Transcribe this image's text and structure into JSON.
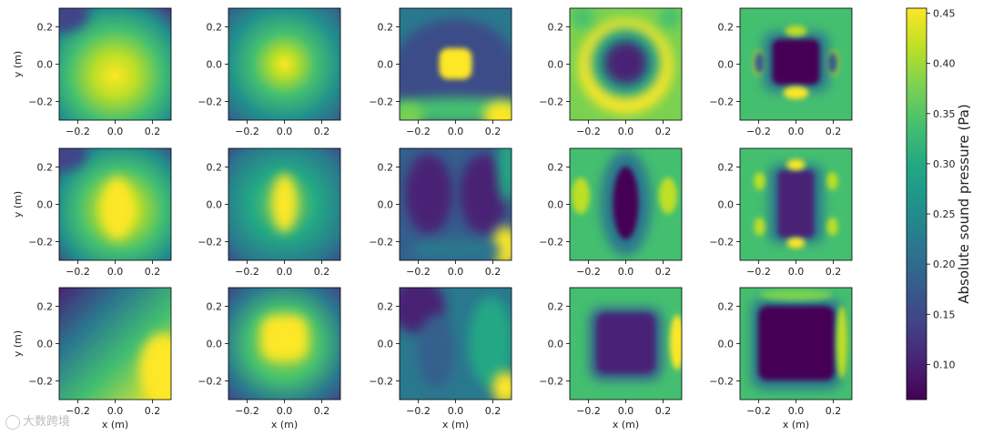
{
  "chart_data": {
    "type": "heatmap",
    "layout": {
      "rows": 3,
      "cols": 5
    },
    "x_range": [
      -0.3,
      0.3
    ],
    "y_range": [
      -0.3,
      0.3
    ],
    "x_ticks": [
      -0.2,
      0.0,
      0.2
    ],
    "y_ticks": [
      0.2,
      0.0,
      -0.2
    ],
    "x_tick_labels": [
      "−0.2",
      "0.0",
      "0.2"
    ],
    "y_tick_labels": [
      "0.2",
      "0.0",
      "−0.2"
    ],
    "xlabel": "x (m)",
    "ylabel": "y (m)",
    "colorbar": {
      "label": "Absolute sound pressure (Pa)",
      "range": [
        0.065,
        0.455
      ],
      "ticks": [
        0.45,
        0.4,
        0.35,
        0.3,
        0.25,
        0.2,
        0.15,
        0.1
      ],
      "tick_labels": [
        "0.45",
        "0.40",
        "0.35",
        "0.30",
        "0.25",
        "0.20",
        "0.15",
        "0.10"
      ],
      "colormap": "viridis"
    },
    "panels": [
      {
        "row": 0,
        "col": 0,
        "pattern": "broad-peak",
        "peak_at": [
          0.02,
          -0.05
        ]
      },
      {
        "row": 0,
        "col": 1,
        "pattern": "centered-peak"
      },
      {
        "row": 0,
        "col": 2,
        "pattern": "small-square-peak"
      },
      {
        "row": 0,
        "col": 3,
        "pattern": "ring"
      },
      {
        "row": 0,
        "col": 4,
        "pattern": "square-mode"
      },
      {
        "row": 1,
        "col": 0,
        "pattern": "vertical-ellipse-peak"
      },
      {
        "row": 1,
        "col": 1,
        "pattern": "narrow-vertical-peak"
      },
      {
        "row": 1,
        "col": 2,
        "pattern": "two-minima"
      },
      {
        "row": 1,
        "col": 3,
        "pattern": "vertical-minimum"
      },
      {
        "row": 1,
        "col": 4,
        "pattern": "rect-mode"
      },
      {
        "row": 2,
        "col": 0,
        "pattern": "corner-gradient"
      },
      {
        "row": 2,
        "col": 1,
        "pattern": "square-peak"
      },
      {
        "row": 2,
        "col": 2,
        "pattern": "diffuse"
      },
      {
        "row": 2,
        "col": 3,
        "pattern": "square-minimum"
      },
      {
        "row": 2,
        "col": 4,
        "pattern": "large-square-mode"
      }
    ]
  },
  "watermark": {
    "text": "大数跨境"
  }
}
